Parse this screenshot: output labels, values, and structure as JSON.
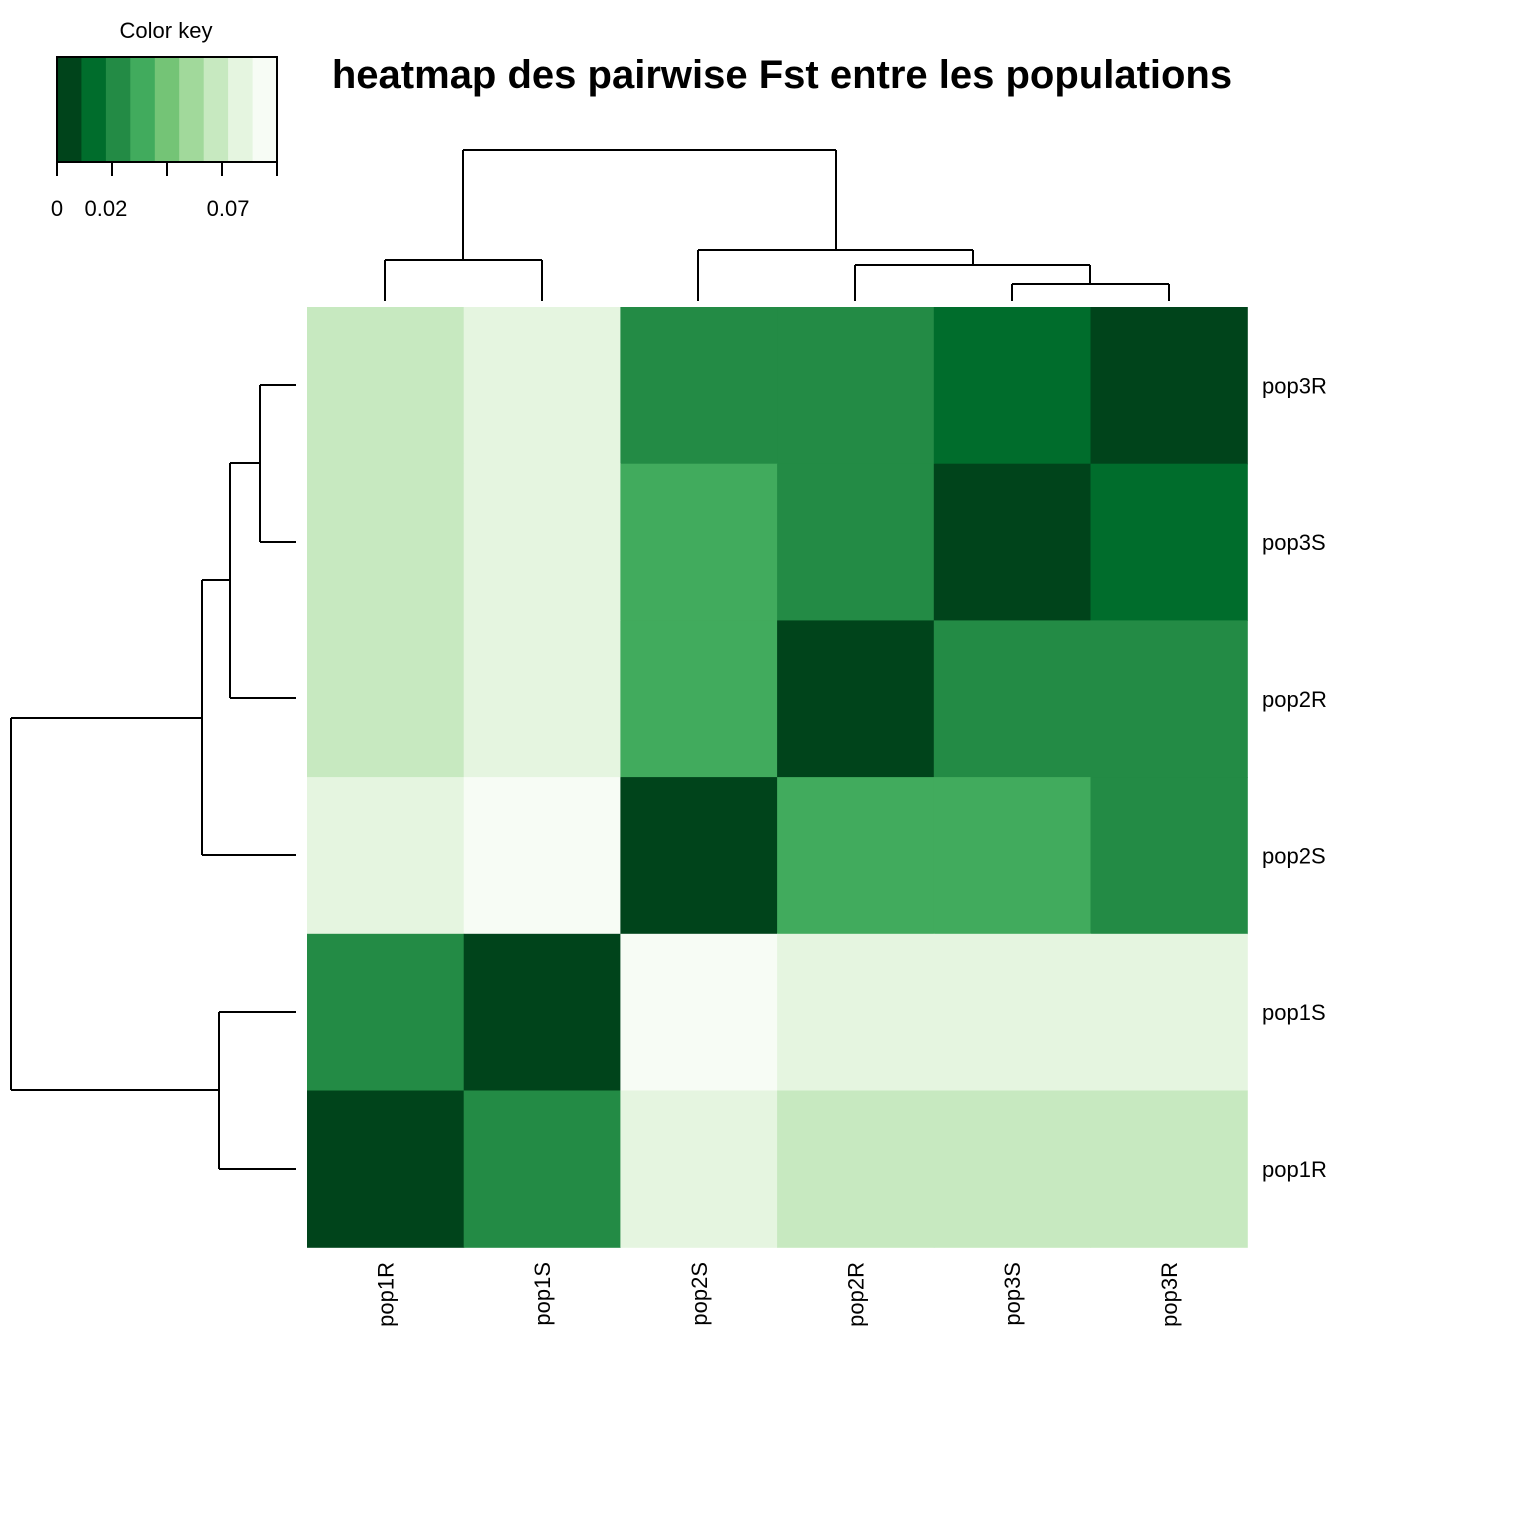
{
  "chart_data": {
    "type": "heatmap",
    "title": "heatmap des pairwise Fst entre les populations",
    "column_labels": [
      "pop1R",
      "pop1S",
      "pop2S",
      "pop2R",
      "pop3S",
      "pop3R"
    ],
    "row_labels": [
      "pop3R",
      "pop3S",
      "pop2R",
      "pop2S",
      "pop1S",
      "pop1R"
    ],
    "color_key": {
      "title": "Color key",
      "tick_labels": [
        "0",
        "0.02",
        "0.07"
      ],
      "tick_values": [
        0,
        0.02,
        0.07
      ],
      "range": [
        0,
        0.09
      ],
      "colors": [
        "#00441b",
        "#006d2c",
        "#238b45",
        "#41ab5d",
        "#74c476",
        "#a1d99b",
        "#c7e9c0",
        "#e5f5e0",
        "#f7fcf5"
      ]
    },
    "values_level_index": [
      [
        6,
        7,
        2,
        2,
        1,
        0
      ],
      [
        6,
        7,
        3,
        2,
        0,
        1
      ],
      [
        6,
        7,
        3,
        0,
        2,
        2
      ],
      [
        7,
        8,
        0,
        3,
        3,
        2
      ],
      [
        2,
        0,
        8,
        7,
        7,
        7
      ],
      [
        0,
        2,
        7,
        6,
        6,
        6
      ]
    ],
    "column_dendrogram": "((pop1R,pop1S),(pop2S,(pop2R,(pop3S,pop3R))))",
    "row_dendrogram": "(((((pop3R,pop3S),pop2R),pop2S)),(pop1S,pop1R))"
  }
}
